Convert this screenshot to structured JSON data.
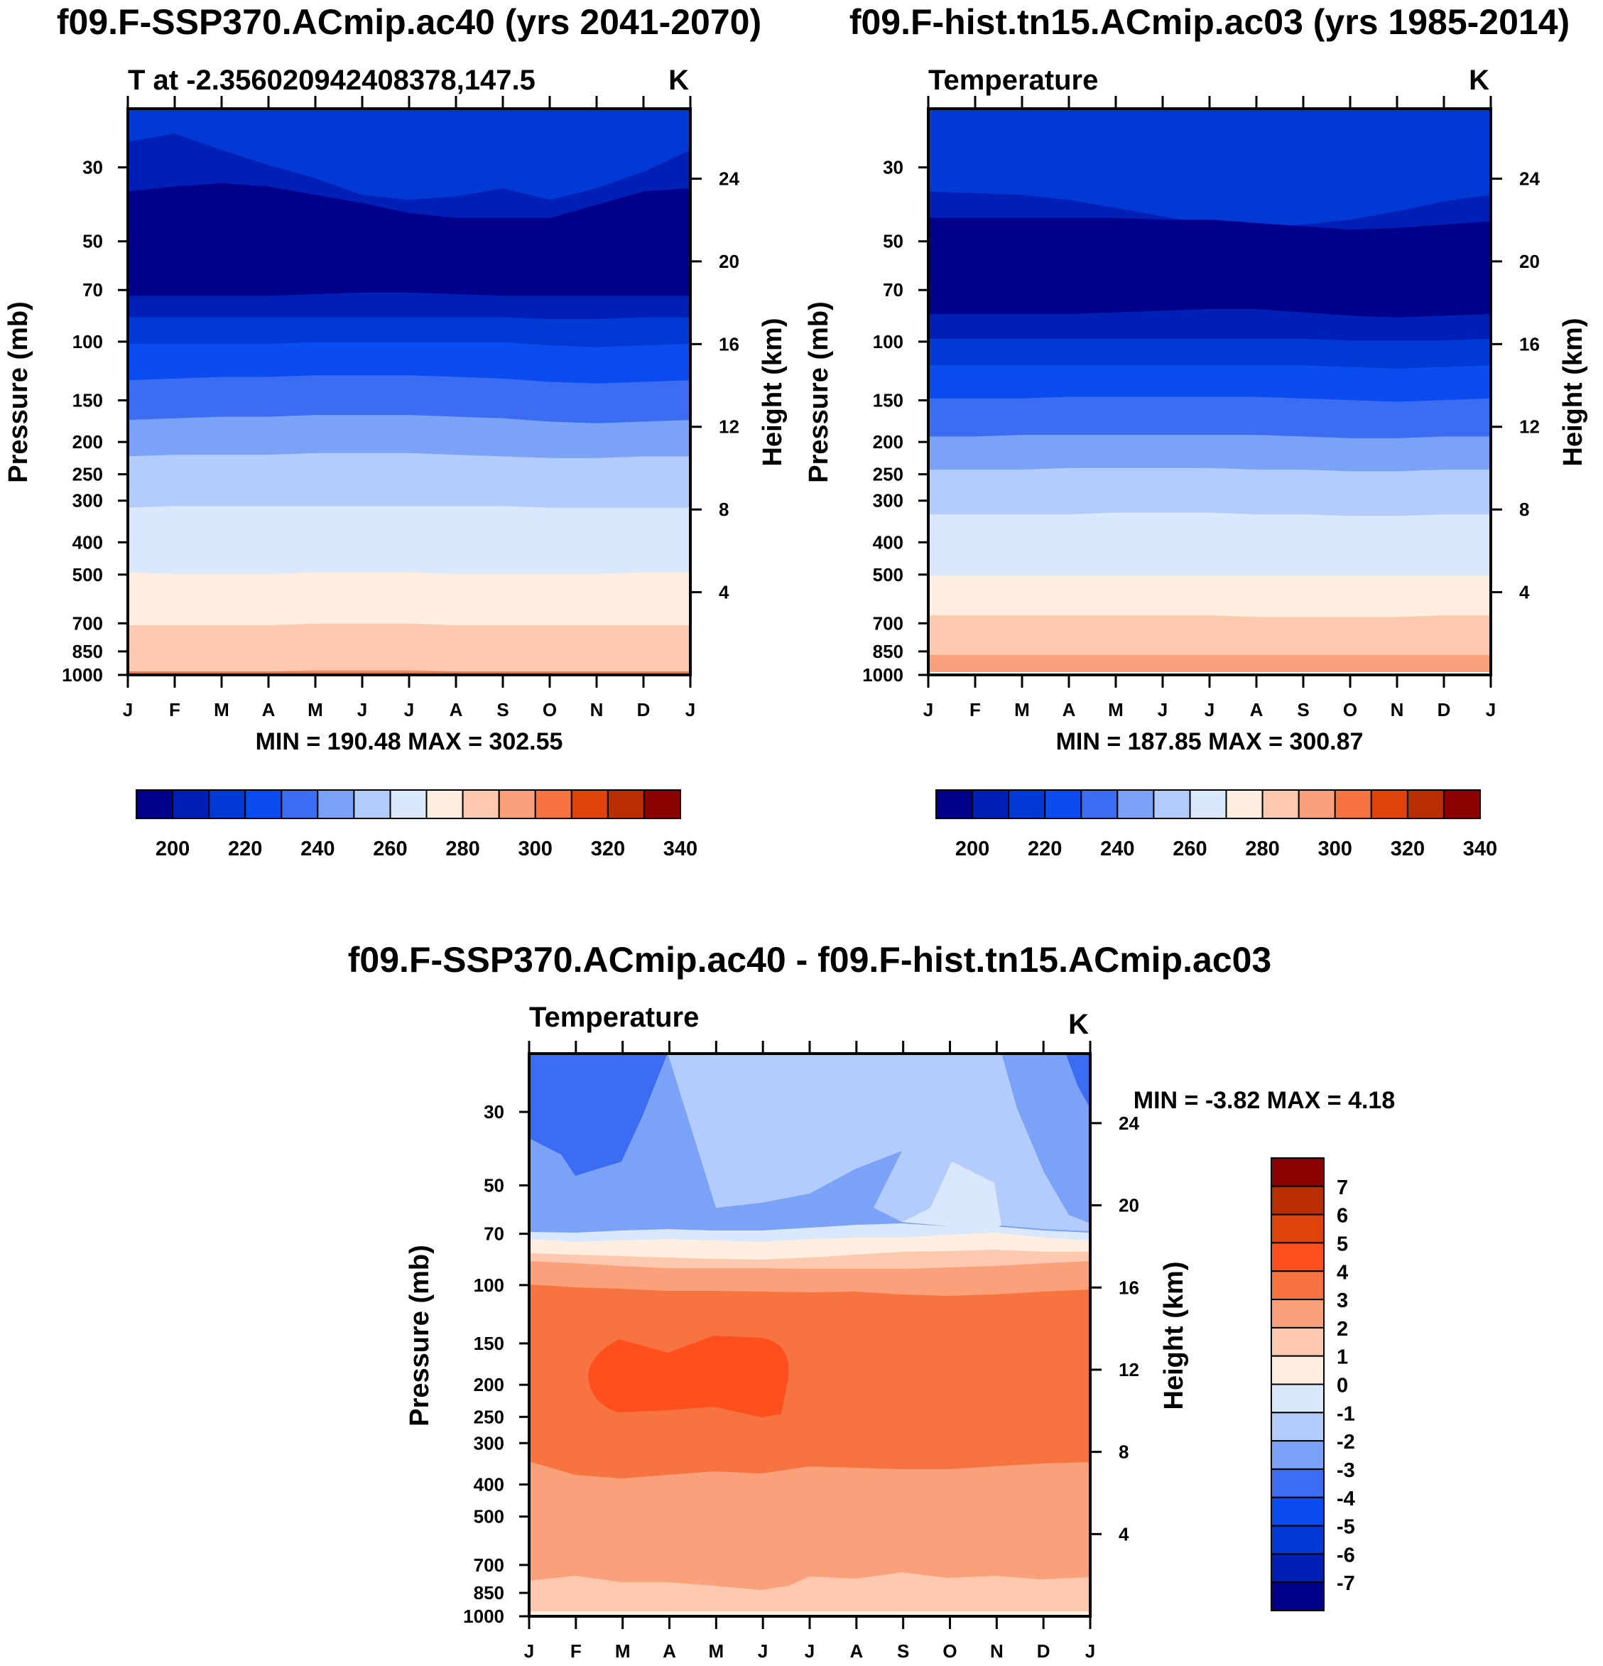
{
  "palette": {
    "abs": [
      "#00008b",
      "#0020b5",
      "#0039d3",
      "#0b4cf0",
      "#3b6cf1",
      "#7aa2f7",
      "#b3ccfb",
      "#d9e8fd",
      "#fdeee0",
      "#fcc9ae",
      "#faa07b",
      "#f77440",
      "#e0420c",
      "#b82e00",
      "#8b0000"
    ],
    "diff": [
      "#00008b",
      "#0020b5",
      "#0039d3",
      "#0b4cf0",
      "#3b6cf1",
      "#7aa2f7",
      "#b3ccfb",
      "#d9e8fd",
      "#fdeee0",
      "#fcc9ae",
      "#faa07b",
      "#f77440",
      "#ff4f1e",
      "#e0420c",
      "#b82e00",
      "#8b0000"
    ]
  },
  "chart_data": [
    {
      "type": "heatmap",
      "title": "f09.F-SSP370.ACmip.ac40 (yrs 2041-2070)",
      "subtitle_left": "T at -2.356020942408378,147.5",
      "subtitle_right": "K",
      "xlabel": "",
      "ylabel": "Pressure (mb)",
      "ylabel_right": "Height (km)",
      "x_ticks": [
        "J",
        "F",
        "M",
        "A",
        "M",
        "J",
        "J",
        "A",
        "S",
        "O",
        "N",
        "D",
        "J"
      ],
      "y_ticks": [
        "30",
        "50",
        "70",
        "100",
        "150",
        "200",
        "250",
        "300",
        "400",
        "500",
        "700",
        "850",
        "1000"
      ],
      "y_ticks_right": [
        "24",
        "20",
        "16",
        "12",
        "8",
        "4"
      ],
      "minmax": "MIN = 190.48 MAX = 302.55",
      "colorbar_labels": [
        "200",
        "220",
        "240",
        "260",
        "280",
        "300",
        "320",
        "340"
      ],
      "contour_levels_K": [
        190,
        200,
        210,
        220,
        230,
        240,
        250,
        260,
        270,
        280,
        290,
        300
      ],
      "bands": [
        {
          "top": [
            20,
            15,
            25,
            34,
            42,
            52,
            55,
            53,
            48,
            55,
            48,
            38,
            25
          ],
          "level": "195"
        },
        {
          "top": [
            50,
            47,
            45,
            47,
            52,
            57,
            63,
            66,
            66,
            66,
            58,
            50,
            48
          ],
          "level": "190"
        },
        {
          "top": [
            113,
            113,
            113,
            113,
            112,
            111,
            111,
            112,
            113,
            113,
            113,
            113,
            113
          ],
          "level": "200"
        },
        {
          "top": [
            126,
            126,
            126,
            126,
            126,
            126,
            126,
            126,
            126,
            127,
            127,
            126,
            126
          ],
          "level": "210"
        },
        {
          "top": [
            142,
            142,
            142,
            142,
            141,
            141,
            141,
            141,
            141,
            143,
            144,
            143,
            142
          ],
          "level": "220"
        },
        {
          "top": [
            164,
            163,
            162,
            162,
            161,
            161,
            161,
            162,
            163,
            165,
            166,
            165,
            164
          ],
          "level": "230"
        },
        {
          "top": [
            188,
            187,
            186,
            186,
            185,
            185,
            185,
            186,
            187,
            189,
            190,
            189,
            188
          ],
          "level": "240"
        },
        {
          "top": [
            210,
            209,
            209,
            209,
            208,
            208,
            208,
            209,
            210,
            211,
            211,
            210,
            210
          ],
          "level": "250"
        },
        {
          "top": [
            241,
            240,
            240,
            240,
            240,
            240,
            240,
            240,
            240,
            241,
            241,
            241,
            241
          ],
          "level": "260"
        },
        {
          "top": [
            280,
            281,
            281,
            281,
            280,
            280,
            280,
            281,
            281,
            281,
            281,
            280,
            280
          ],
          "level": "270"
        },
        {
          "top": [
            312,
            312,
            312,
            312,
            311,
            311,
            311,
            312,
            312,
            312,
            312,
            312,
            312
          ],
          "level": "280"
        },
        {
          "top": [
            340,
            340,
            340,
            340,
            339,
            339,
            339,
            340,
            340,
            340,
            340,
            340,
            340
          ],
          "level": "290"
        }
      ]
    },
    {
      "type": "heatmap",
      "title": "f09.F-hist.tn15.ACmip.ac03 (yrs 1985-2014)",
      "subtitle_left": "Temperature",
      "subtitle_right": "K",
      "xlabel": "",
      "ylabel": "Pressure (mb)",
      "ylabel_right": "Height (km)",
      "x_ticks": [
        "J",
        "F",
        "M",
        "A",
        "M",
        "J",
        "J",
        "A",
        "S",
        "O",
        "N",
        "D",
        "J"
      ],
      "y_ticks": [
        "30",
        "50",
        "70",
        "100",
        "150",
        "200",
        "250",
        "300",
        "400",
        "500",
        "700",
        "850",
        "1000"
      ],
      "y_ticks_right": [
        "24",
        "20",
        "16",
        "12",
        "8",
        "4"
      ],
      "minmax": "MIN = 187.85 MAX = 300.87",
      "colorbar_labels": [
        "200",
        "220",
        "240",
        "260",
        "280",
        "300",
        "320",
        "340"
      ],
      "contour_levels_K": [
        190,
        200,
        210,
        220,
        230,
        240,
        250,
        260,
        270,
        280,
        290,
        300
      ],
      "bands": [
        {
          "top": [
            50,
            51,
            52,
            55,
            60,
            65,
            70,
            72,
            70,
            67,
            62,
            56,
            52
          ],
          "level": "200"
        },
        {
          "top": [
            66,
            66,
            66,
            66,
            66,
            67,
            67,
            69,
            71,
            73,
            72,
            70,
            68
          ],
          "level": "190"
        },
        {
          "top": [
            124,
            124,
            124,
            124,
            123,
            122,
            121,
            121,
            123,
            125,
            126,
            125,
            124
          ],
          "level": "200"
        },
        {
          "top": [
            139,
            139,
            139,
            139,
            139,
            139,
            139,
            139,
            139,
            140,
            140,
            140,
            139
          ],
          "level": "210"
        },
        {
          "top": [
            155,
            155,
            155,
            155,
            155,
            155,
            155,
            155,
            155,
            156,
            157,
            156,
            155
          ],
          "level": "220"
        },
        {
          "top": [
            175,
            175,
            175,
            174,
            174,
            174,
            174,
            174,
            175,
            176,
            177,
            176,
            175
          ],
          "level": "230"
        },
        {
          "top": [
            198,
            198,
            197,
            197,
            197,
            197,
            197,
            197,
            198,
            199,
            199,
            198,
            198
          ],
          "level": "240"
        },
        {
          "top": [
            218,
            218,
            218,
            217,
            217,
            217,
            217,
            218,
            218,
            219,
            219,
            218,
            218
          ],
          "level": "250"
        },
        {
          "top": [
            245,
            245,
            245,
            245,
            244,
            244,
            244,
            245,
            245,
            246,
            246,
            245,
            245
          ],
          "level": "260"
        },
        {
          "top": [
            282,
            282,
            282,
            282,
            282,
            282,
            282,
            282,
            282,
            282,
            282,
            282,
            282
          ],
          "level": "270"
        },
        {
          "top": [
            306,
            306,
            306,
            306,
            306,
            306,
            306,
            307,
            307,
            307,
            307,
            306,
            306
          ],
          "level": "280"
        },
        {
          "top": [
            330,
            330,
            330,
            330,
            330,
            330,
            330,
            330,
            330,
            330,
            330,
            330,
            330
          ],
          "level": "290"
        }
      ]
    },
    {
      "type": "heatmap",
      "title": "f09.F-SSP370.ACmip.ac40 - f09.F-hist.tn15.ACmip.ac03",
      "subtitle_left": "Temperature",
      "subtitle_right": "K",
      "xlabel": "",
      "ylabel": "Pressure (mb)",
      "ylabel_right": "Height (km)",
      "x_ticks": [
        "J",
        "F",
        "M",
        "A",
        "M",
        "J",
        "J",
        "A",
        "S",
        "O",
        "N",
        "D",
        "J"
      ],
      "y_ticks": [
        "30",
        "50",
        "70",
        "100",
        "150",
        "200",
        "250",
        "300",
        "400",
        "500",
        "700",
        "850",
        "1000"
      ],
      "y_ticks_right": [
        "24",
        "20",
        "16",
        "12",
        "8",
        "4"
      ],
      "minmax": "MIN =  -3.82 MAX =   4.18",
      "colorbar_labels": [
        "7",
        "6",
        "5",
        "4",
        "3",
        "2",
        "1",
        "0",
        "-1",
        "-2",
        "-3",
        "-4",
        "-5",
        "-6",
        "-7"
      ],
      "contour_levels_K": [
        -3,
        -2,
        -1,
        0,
        1,
        2,
        3,
        4
      ],
      "note": "difference field (K)"
    }
  ]
}
